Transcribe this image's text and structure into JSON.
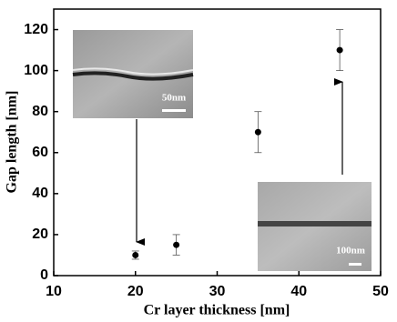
{
  "chart_data": {
    "type": "scatter",
    "x_label": "Cr layer thickness [nm]",
    "y_label": "Gap length [nm]",
    "x": [
      20,
      25,
      35,
      45
    ],
    "series": [
      {
        "color": "#000000",
        "values": [
          10,
          15,
          70,
          110
        ],
        "errors": [
          2,
          5,
          10,
          10
        ]
      }
    ],
    "xlim": [
      10,
      50
    ],
    "xticks": [
      10,
      20,
      30,
      40,
      50
    ],
    "ylim": [
      0,
      130
    ],
    "yticks": [
      0,
      20,
      40,
      60,
      80,
      100,
      120
    ],
    "insets": [
      {
        "scale_label": "50nm"
      },
      {
        "scale_label": "100nm"
      }
    ]
  }
}
